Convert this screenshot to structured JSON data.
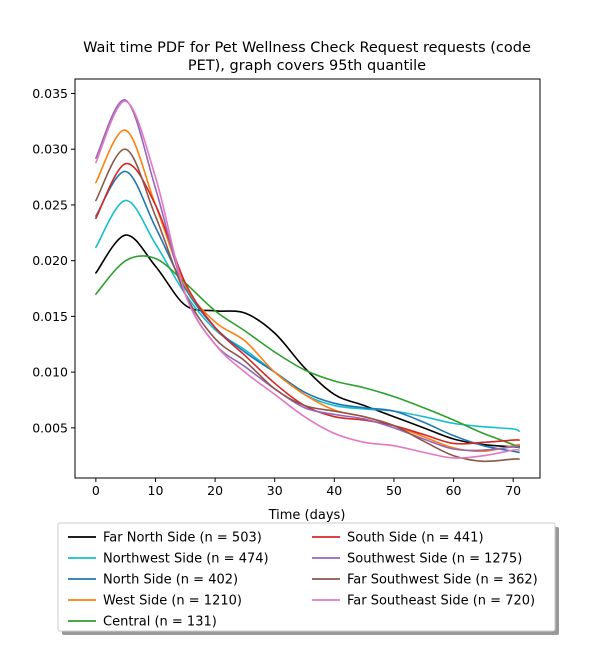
{
  "chart_data": {
    "type": "line",
    "title_lines": [
      "Wait time PDF for Pet Wellness Check Request  requests (code",
      "PET), graph covers 95th quantile"
    ],
    "xlabel": "Time (days)",
    "ylabel": "",
    "xlim": [
      -3.5,
      74.5
    ],
    "ylim": [
      0.0005,
      0.0363
    ],
    "xticks": [
      0,
      10,
      20,
      30,
      40,
      50,
      60,
      70
    ],
    "yticks": [
      0.005,
      0.01,
      0.015,
      0.02,
      0.025,
      0.03,
      0.035
    ],
    "ytick_labels": [
      "0.005",
      "0.010",
      "0.015",
      "0.020",
      "0.025",
      "0.030",
      "0.035"
    ],
    "grid": false,
    "legend_position": "below plot, two columns",
    "x": [
      0,
      5,
      10,
      15,
      20,
      25,
      30,
      35,
      40,
      45,
      50,
      55,
      60,
      65,
      70,
      71
    ],
    "series": [
      {
        "name": "Far North Side (n = 503)",
        "color": "#000000",
        "values": [
          0.0189,
          0.0223,
          0.0195,
          0.016,
          0.0155,
          0.0153,
          0.0135,
          0.0104,
          0.008,
          0.007,
          0.006,
          0.005,
          0.004,
          0.0035,
          0.0033,
          0.0033
        ]
      },
      {
        "name": "Northwest Side (n = 474)",
        "color": "#17becf",
        "values": [
          0.0212,
          0.0254,
          0.0215,
          0.017,
          0.0138,
          0.012,
          0.01,
          0.008,
          0.007,
          0.0067,
          0.0065,
          0.006,
          0.0054,
          0.0051,
          0.0049,
          0.0047
        ]
      },
      {
        "name": "North Side (n = 402)",
        "color": "#1f77b4",
        "values": [
          0.024,
          0.028,
          0.023,
          0.0175,
          0.014,
          0.0118,
          0.01,
          0.0082,
          0.0072,
          0.0068,
          0.0065,
          0.0055,
          0.0043,
          0.0034,
          0.0029,
          0.0028
        ]
      },
      {
        "name": "West Side (n = 1210)",
        "color": "#ff7f0e",
        "values": [
          0.027,
          0.0317,
          0.025,
          0.0178,
          0.0145,
          0.0128,
          0.01,
          0.008,
          0.0066,
          0.006,
          0.0052,
          0.0042,
          0.0032,
          0.0029,
          0.0034,
          0.0035
        ]
      },
      {
        "name": "Central (n = 131)",
        "color": "#2ca02c",
        "values": [
          0.017,
          0.02,
          0.0202,
          0.018,
          0.0155,
          0.0137,
          0.0118,
          0.0102,
          0.0092,
          0.0086,
          0.0078,
          0.0068,
          0.0057,
          0.0045,
          0.0035,
          0.0032
        ]
      },
      {
        "name": "South Side (n = 441)",
        "color": "#d62728",
        "values": [
          0.0238,
          0.0287,
          0.025,
          0.018,
          0.014,
          0.0115,
          0.009,
          0.007,
          0.006,
          0.0057,
          0.0052,
          0.0044,
          0.0036,
          0.0037,
          0.0039,
          0.0039
        ]
      },
      {
        "name": "Southwest Side (n = 1275)",
        "color": "#9467bd",
        "values": [
          0.0292,
          0.0344,
          0.0265,
          0.017,
          0.0125,
          0.0105,
          0.0085,
          0.0068,
          0.0062,
          0.0058,
          0.005,
          0.004,
          0.0031,
          0.003,
          0.0033,
          0.0034
        ]
      },
      {
        "name": "Far Southwest Side (n = 362)",
        "color": "#8c564b",
        "values": [
          0.0254,
          0.03,
          0.024,
          0.017,
          0.013,
          0.011,
          0.0085,
          0.007,
          0.0065,
          0.006,
          0.0052,
          0.0038,
          0.0025,
          0.002,
          0.0022,
          0.0022
        ]
      },
      {
        "name": "Far Southeast Side (n = 720)",
        "color": "#e377c2",
        "values": [
          0.0288,
          0.0343,
          0.0275,
          0.017,
          0.0125,
          0.01,
          0.008,
          0.006,
          0.0045,
          0.0037,
          0.0034,
          0.0028,
          0.0023,
          0.0025,
          0.003,
          0.003
        ]
      }
    ]
  }
}
